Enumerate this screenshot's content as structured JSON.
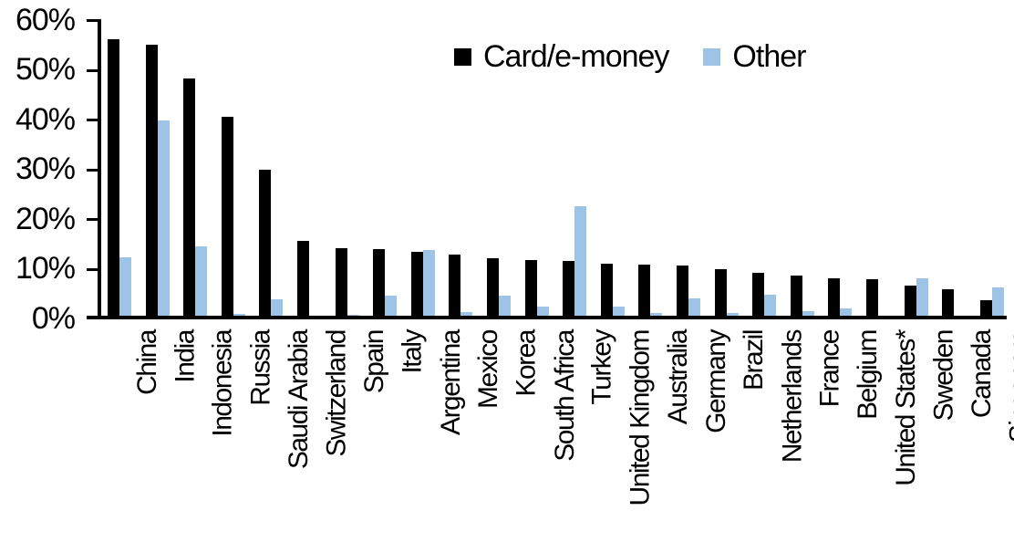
{
  "chart_data": {
    "type": "bar",
    "title": "",
    "xlabel": "",
    "ylabel": "",
    "ylim": [
      0,
      60
    ],
    "ytick_step": 10,
    "yticks": [
      "0%",
      "10%",
      "20%",
      "30%",
      "40%",
      "50%",
      "60%"
    ],
    "grid": false,
    "legend_position": "top-center",
    "categories": [
      "China",
      "India",
      "Indonesia",
      "Russia",
      "Saudi Arabia",
      "Switzerland",
      "Spain",
      "Italy",
      "Argentina",
      "Mexico",
      "Korea",
      "South Africa",
      "Turkey",
      "United Kingdom",
      "Australia",
      "Germany",
      "Brazil",
      "Netherlands",
      "France",
      "Belgium",
      "United States*",
      "Sweden",
      "Canada",
      "Singapore"
    ],
    "series": [
      {
        "name": "Card/e-money",
        "color": "#000000",
        "values": [
          56.3,
          55.2,
          48.4,
          40.6,
          30.0,
          15.7,
          14.3,
          14.1,
          13.5,
          13.0,
          12.3,
          12.0,
          11.8,
          11.2,
          11.0,
          10.8,
          10.1,
          9.4,
          8.8,
          8.3,
          8.0,
          6.7,
          6.1,
          3.9
        ]
      },
      {
        "name": "Other",
        "color": "#9DC3E6",
        "values": [
          12.5,
          39.9,
          14.6,
          1.1,
          4.1,
          0.8,
          1.0,
          4.8,
          13.9,
          1.5,
          4.8,
          2.6,
          22.8,
          2.6,
          1.2,
          4.2,
          1.3,
          5.0,
          1.6,
          2.2,
          0.3,
          8.2,
          0,
          6.5
        ]
      }
    ]
  }
}
